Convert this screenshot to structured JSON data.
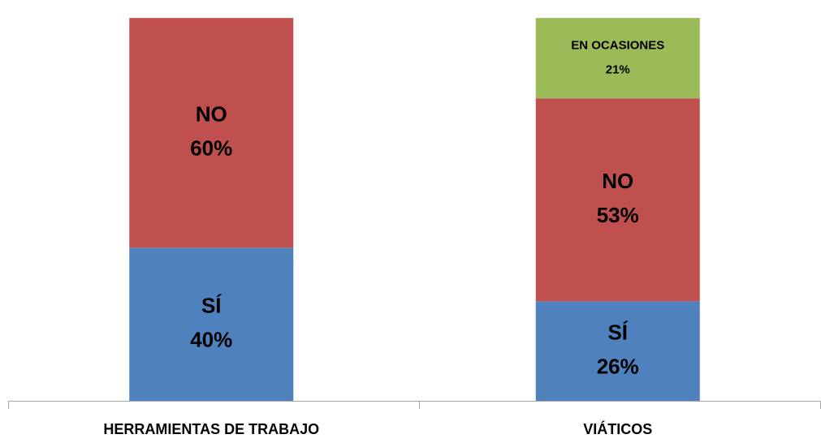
{
  "chart_data": {
    "type": "stacked-bar",
    "categories": [
      "HERRAMIENTAS DE TRABAJO",
      "VIÁTICOS"
    ],
    "series": [
      {
        "name": "SÍ",
        "color": "#4f81bd",
        "values": [
          40,
          26
        ],
        "value_labels": [
          "40%",
          "26%"
        ]
      },
      {
        "name": "NO",
        "color": "#c0504d",
        "values": [
          60,
          53
        ],
        "value_labels": [
          "60%",
          "53%"
        ]
      },
      {
        "name": "EN OCASIONES",
        "color": "#9bbb59",
        "values": [
          null,
          21
        ],
        "value_labels": [
          null,
          "21%"
        ]
      }
    ],
    "ylim": [
      0,
      103
    ]
  }
}
